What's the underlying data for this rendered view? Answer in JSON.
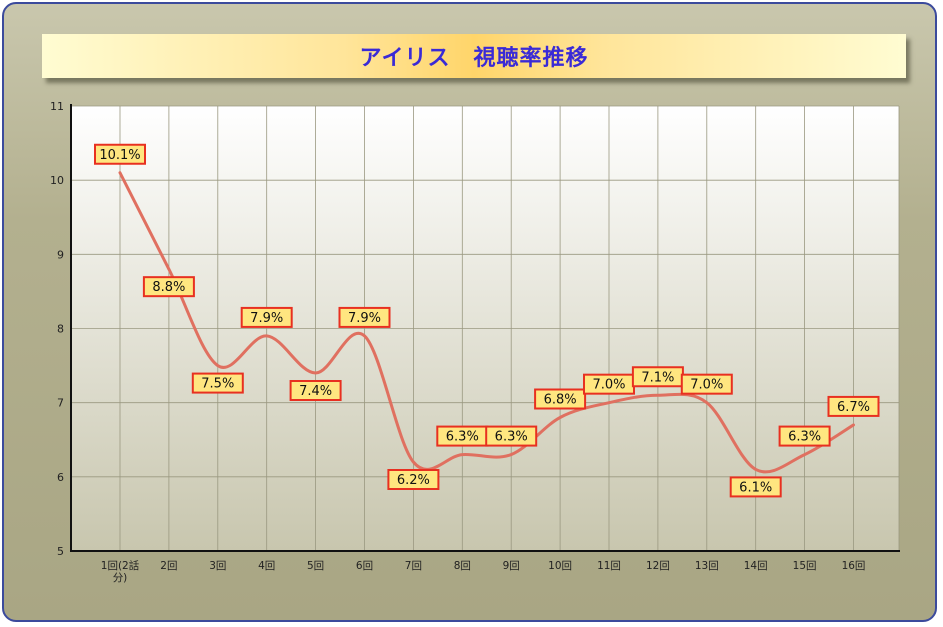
{
  "chart_data": {
    "type": "line",
    "title": "アイリス　視聴率推移",
    "categories": [
      "1回(2話分)",
      "2回",
      "3回",
      "4回",
      "5回",
      "6回",
      "7回",
      "8回",
      "9回",
      "10回",
      "11回",
      "12回",
      "13回",
      "14回",
      "15回",
      "16回"
    ],
    "category_lines": [
      [
        "1回(2話",
        "分)"
      ],
      [
        "2回"
      ],
      [
        "3回"
      ],
      [
        "4回"
      ],
      [
        "5回"
      ],
      [
        "6回"
      ],
      [
        "7回"
      ],
      [
        "8回"
      ],
      [
        "9回"
      ],
      [
        "10回"
      ],
      [
        "11回"
      ],
      [
        "12回"
      ],
      [
        "13回"
      ],
      [
        "14回"
      ],
      [
        "15回"
      ],
      [
        "16回"
      ]
    ],
    "values": [
      10.1,
      8.8,
      7.5,
      7.9,
      7.4,
      7.9,
      6.2,
      6.3,
      6.3,
      6.8,
      7.0,
      7.1,
      7.0,
      6.1,
      6.3,
      6.7
    ],
    "data_labels": [
      "10.1%",
      "8.8%",
      "7.5%",
      "7.9%",
      "7.4%",
      "7.9%",
      "6.2%",
      "6.3%",
      "6.3%",
      "6.8%",
      "7.0%",
      "7.1%",
      "7.0%",
      "6.1%",
      "6.3%",
      "6.7%"
    ],
    "label_position": [
      "above",
      "below",
      "below",
      "above",
      "below",
      "above",
      "below",
      "above",
      "above",
      "above",
      "above",
      "above",
      "above",
      "below",
      "above",
      "above"
    ],
    "ylim": [
      5,
      11
    ],
    "yticks": [
      5,
      6,
      7,
      8,
      9,
      10,
      11
    ],
    "grid": true,
    "xlabel": "",
    "ylabel": "",
    "colors": {
      "line": "#e07060",
      "label_fill": "#ffe680",
      "label_border": "#e83020",
      "title_text": "#3a2ad6"
    }
  }
}
